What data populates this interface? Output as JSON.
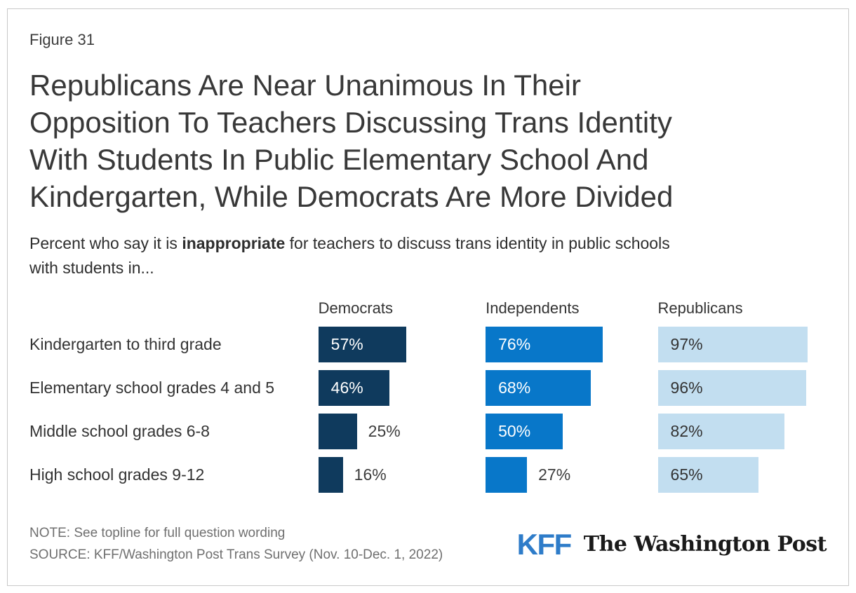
{
  "figure_label": "Figure 31",
  "title_lines": [
    "Republicans Are Near Unanimous In Their",
    "Opposition To Teachers Discussing Trans Identity",
    "With Students In Public Elementary School And",
    "Kindergarten, While Democrats Are More Divided"
  ],
  "subtitle": {
    "before": "Percent who say it is ",
    "bold": "inappropriate",
    "after": " for teachers to discuss trans identity in public schools",
    "line2": "with students in..."
  },
  "chart_data": {
    "type": "bar",
    "orientation": "horizontal",
    "title": "Republicans Are Near Unanimous In Their Opposition To Teachers Discussing Trans Identity With Students In Public Elementary School And Kindergarten, While Democrats Are More Divided",
    "subtitle": "Percent who say it is inappropriate for teachers to discuss trans identity in public schools with students in...",
    "categories": [
      "Kindergarten to third grade",
      "Elementary school grades 4 and 5",
      "Middle school grades 6-8",
      "High school grades 9-12"
    ],
    "series": [
      {
        "name": "Democrats",
        "color": "#0F3A5D",
        "inside_label_color": "#FFFFFF",
        "values": [
          57,
          46,
          25,
          16
        ]
      },
      {
        "name": "Independents",
        "color": "#0877C9",
        "inside_label_color": "#FFFFFF",
        "values": [
          76,
          68,
          50,
          27
        ]
      },
      {
        "name": "Republicans",
        "color": "#C2DEF0",
        "inside_label_color": "#333333",
        "values": [
          97,
          96,
          82,
          65
        ]
      }
    ],
    "value_suffix": "%",
    "xlim": [
      0,
      100
    ],
    "grid": false,
    "axis_labels": "none",
    "legend_position": "column-headers",
    "outside_label_color": "#3D3D3D"
  },
  "footer": {
    "note": "NOTE: See topline for full question wording",
    "source": "SOURCE: KFF/Washington Post Trans Survey (Nov. 10-Dec. 1, 2022)"
  },
  "logos": {
    "kff": "KFF",
    "washington_post": "The Washington Post"
  },
  "colors": {
    "democrats_bar": "#0F3A5D",
    "independents_bar": "#0877C9",
    "republicans_bar": "#C2DEF0",
    "kff_logo_blue": "#2E7CC9",
    "title_text": "#383838",
    "footnote_text": "#6F6F6F",
    "card_border": "#C8C8C8"
  }
}
